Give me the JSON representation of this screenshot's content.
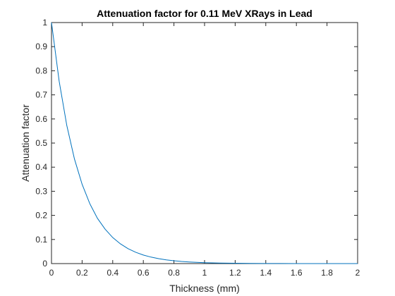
{
  "chart_data": {
    "type": "line",
    "title": "Attenuation factor for 0.11 MeV XRays in Lead",
    "xlabel": "Thickness (mm)",
    "ylabel": "Attenuation factor",
    "xlim": [
      0,
      2
    ],
    "ylim": [
      0,
      1
    ],
    "xticks": [
      "0",
      "0.2",
      "0.4",
      "0.6",
      "0.8",
      "1",
      "1.2",
      "1.4",
      "1.6",
      "1.8",
      "2"
    ],
    "yticks": [
      "0",
      "0.1",
      "0.2",
      "0.3",
      "0.4",
      "0.5",
      "0.6",
      "0.7",
      "0.8",
      "0.9",
      "1"
    ],
    "grid": false,
    "line_color": "#0072BD",
    "series": [
      {
        "x": [
          0,
          0.05,
          0.1,
          0.15,
          0.2,
          0.25,
          0.3,
          0.35,
          0.4,
          0.45,
          0.5,
          0.55,
          0.6,
          0.65,
          0.7,
          0.75,
          0.8,
          0.85,
          0.9,
          0.95,
          1.0,
          1.1,
          1.2,
          1.3,
          1.4,
          1.5,
          1.6,
          1.7,
          1.8,
          1.9,
          2.0
        ],
        "y": [
          1.0,
          0.757,
          0.573,
          0.434,
          0.329,
          0.249,
          0.188,
          0.143,
          0.108,
          0.082,
          0.062,
          0.047,
          0.0355,
          0.0269,
          0.0204,
          0.0154,
          0.0117,
          0.0088,
          0.0067,
          0.0051,
          0.0038,
          0.0022,
          0.0013,
          0.0007,
          0.0004,
          0.0002,
          0.0001,
          0.0001,
          0.0,
          0.0,
          0.0
        ]
      }
    ]
  }
}
